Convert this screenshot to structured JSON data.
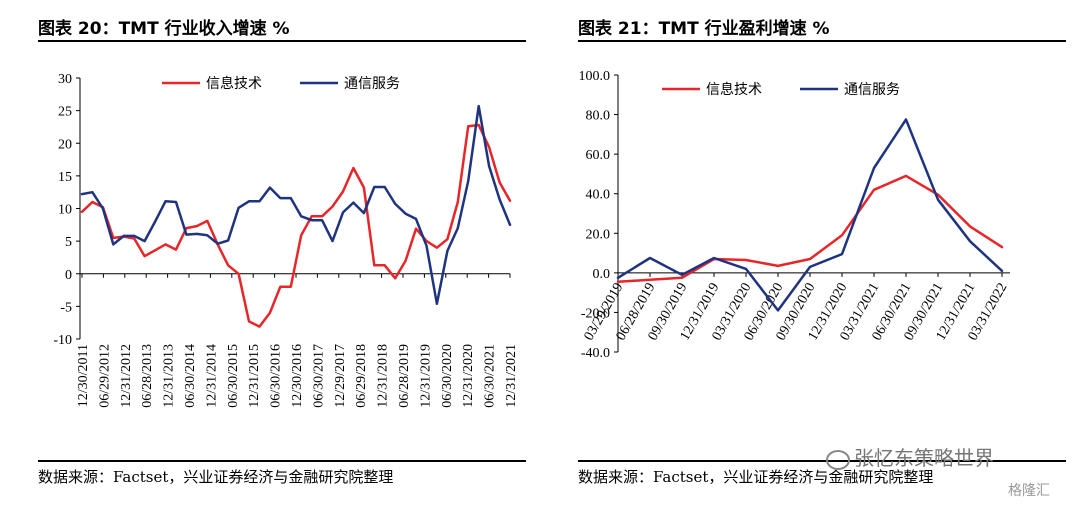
{
  "left": {
    "title": "图表 20：TMT 行业收入增速 %",
    "source": "数据来源：Factset，兴业证券经济与金融研究院整理"
  },
  "right": {
    "title": "图表 21：TMT 行业盈利增速 %",
    "source": "数据来源：Factset，兴业证券经济与金融研究院整理"
  },
  "watermark": {
    "main": "张忆东策略世界",
    "corner": "格隆汇"
  },
  "chart_data": [
    {
      "type": "line",
      "title": "TMT 行业收入增速 %",
      "ylim": [
        -10,
        30
      ],
      "yticks": [
        -10,
        -5,
        0,
        5,
        10,
        15,
        20,
        25,
        30
      ],
      "ytick_labels": [
        "-10",
        "-5",
        "0",
        "5",
        "10",
        "15",
        "20",
        "25",
        "30"
      ],
      "x_tick_labels": [
        "12/30/2011",
        "06/29/2012",
        "12/31/2012",
        "06/28/2013",
        "12/31/2013",
        "06/30/2014",
        "12/31/2014",
        "06/30/2015",
        "12/31/2015",
        "06/30/2016",
        "12/30/2016",
        "06/30/2017",
        "12/29/2017",
        "06/29/2018",
        "12/31/2018",
        "06/28/2019",
        "12/31/2019",
        "06/30/2020",
        "12/31/2020",
        "06/30/2021",
        "12/31/2021"
      ],
      "legend_position": "top-center",
      "series": [
        {
          "name": "信息技术",
          "color": "#e8262a",
          "values": [
            9.5,
            11.0,
            10.2,
            5.5,
            5.7,
            5.4,
            2.7,
            3.6,
            4.5,
            3.7,
            7.0,
            7.3,
            8.1,
            4.5,
            1.3,
            0.0,
            -7.3,
            -8.1,
            -6.0,
            -2.0,
            -2.0,
            5.9,
            8.8,
            8.8,
            10.3,
            12.6,
            16.2,
            13.2,
            1.3,
            1.3,
            -0.7,
            2.0,
            6.9,
            5.0,
            4.0,
            5.3,
            11.0,
            22.6,
            22.8,
            19.4,
            14.0,
            11.2
          ],
          "x_index_step": 0.5
        },
        {
          "name": "通信服务",
          "color": "#1f3480",
          "values": [
            12.2,
            12.5,
            10.0,
            4.5,
            5.8,
            5.8,
            5.0,
            8.0,
            11.1,
            11.0,
            6.0,
            6.1,
            5.9,
            4.6,
            5.1,
            10.1,
            11.1,
            11.1,
            13.2,
            11.6,
            11.6,
            8.8,
            8.2,
            8.2,
            5.0,
            9.4,
            10.9,
            9.3,
            13.3,
            13.3,
            10.7,
            9.2,
            8.4,
            4.3,
            -4.6,
            3.5,
            7.0,
            14.2,
            25.7,
            16.5,
            11.4,
            7.5
          ],
          "x_index_step": 0.5
        }
      ]
    },
    {
      "type": "line",
      "title": "TMT 行业盈利增速 %",
      "ylim": [
        -40,
        100
      ],
      "yticks": [
        -40,
        -20,
        0,
        20,
        40,
        60,
        80,
        100
      ],
      "ytick_labels": [
        "-40.0",
        "-20.0",
        "0.0",
        "20.0",
        "40.0",
        "60.0",
        "80.0",
        "100.0"
      ],
      "x_tick_labels": [
        "03/29/2019",
        "06/28/2019",
        "09/30/2019",
        "12/31/2019",
        "03/31/2020",
        "06/30/2020",
        "09/30/2020",
        "12/31/2020",
        "03/31/2021",
        "06/30/2021",
        "09/30/2021",
        "12/31/2021",
        "03/31/2022"
      ],
      "legend_position": "top-center",
      "series": [
        {
          "name": "信息技术",
          "color": "#e8262a",
          "values": [
            -4.5,
            -3.5,
            -2.5,
            7.0,
            6.5,
            3.5,
            7.0,
            19.0,
            42.0,
            49.0,
            39.5,
            23.5,
            13.0
          ]
        },
        {
          "name": "通信服务",
          "color": "#1f3480",
          "values": [
            -2.5,
            7.5,
            -1.0,
            7.5,
            2.0,
            -19.0,
            3.0,
            9.5,
            53.0,
            77.5,
            37.0,
            16.0,
            1.0
          ]
        }
      ]
    }
  ]
}
